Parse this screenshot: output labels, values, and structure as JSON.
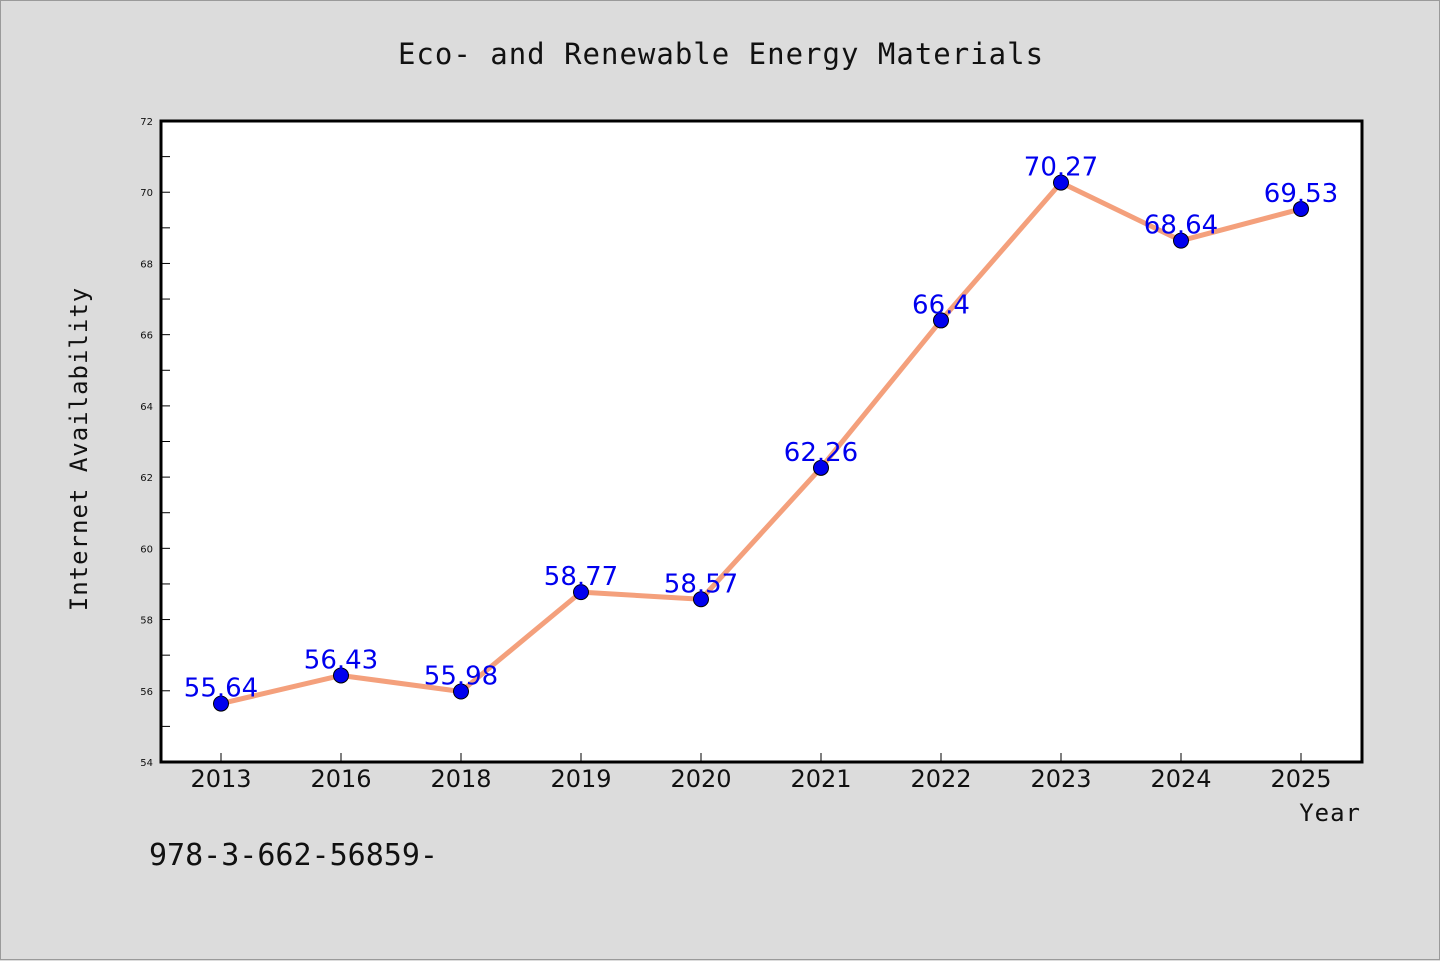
{
  "chart_data": {
    "type": "line",
    "title": "Eco- and Renewable Energy Materials",
    "xlabel": "Year",
    "ylabel": "Internet Availability",
    "categories": [
      "2013",
      "2016",
      "2018",
      "2019",
      "2020",
      "2021",
      "2022",
      "2023",
      "2024",
      "2025"
    ],
    "values": [
      55.64,
      56.43,
      55.98,
      58.77,
      58.57,
      62.26,
      66.4,
      70.27,
      68.64,
      69.53
    ],
    "data_labels": [
      "55.64",
      "56.43",
      "55.98",
      "58.77",
      "58.57",
      "62.26",
      "66.4",
      "70.27",
      "68.64",
      "69.53"
    ],
    "ylim": [
      54,
      72
    ],
    "yticks": [
      "54",
      "56",
      "58",
      "60",
      "62",
      "64",
      "66",
      "68",
      "70",
      "72"
    ],
    "grid": false,
    "line_color": "#f4a07c",
    "marker_color": "#0000ee",
    "label_color": "#0000ee",
    "background": "#dcdcdc",
    "plot_background": "#ffffff"
  },
  "footer": {
    "code": "978-3-662-56859-"
  }
}
